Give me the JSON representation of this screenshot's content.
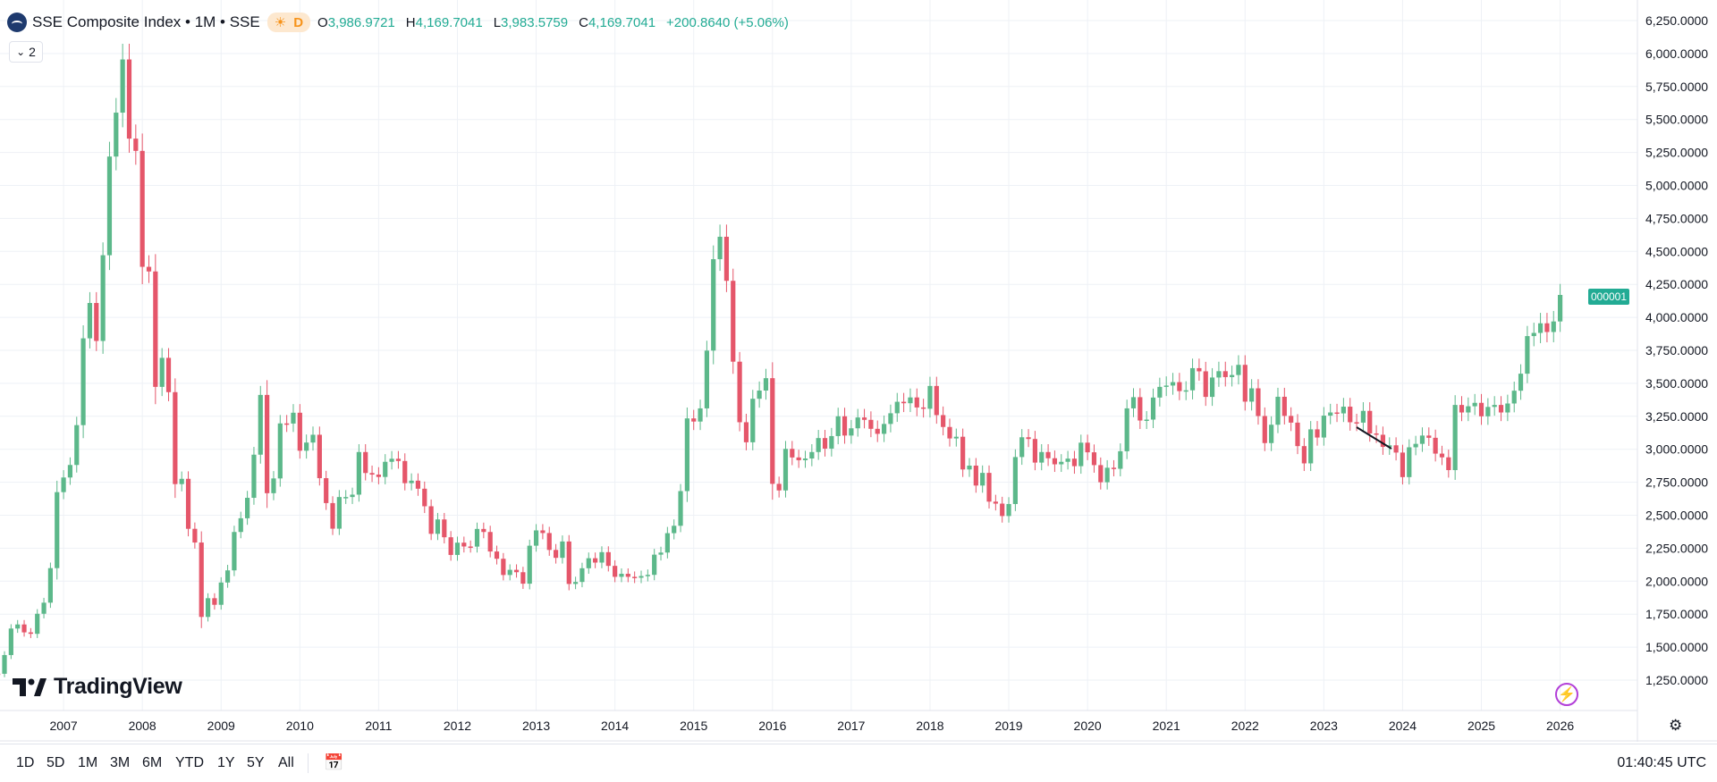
{
  "header": {
    "title": "SSE Composite Index • 1M • SSE",
    "delay_badge": "D",
    "ohlc": [
      {
        "key": "O",
        "value": "3,986.9721"
      },
      {
        "key": "H",
        "value": "4,169.7041"
      },
      {
        "key": "L",
        "value": "3,983.5759"
      },
      {
        "key": "C",
        "value": "4,169.7041"
      }
    ],
    "change": "+200.8640 (+5.06%)",
    "indicators_count": "2"
  },
  "brand": "TradingView",
  "price_label": "000001",
  "colors": {
    "up": "#22ab94",
    "up_fill": "#5cb88a",
    "down": "#e5566a",
    "grid": "#eef1f6"
  },
  "bottom_bar": {
    "ranges": [
      "1D",
      "5D",
      "1M",
      "3M",
      "6M",
      "YTD",
      "1Y",
      "5Y",
      "All"
    ],
    "time": "01:40:45 UTC"
  },
  "chart_data": {
    "type": "candlestick",
    "interval": "1M",
    "ylim": [
      1100,
      6350
    ],
    "y_ticks": [
      "6,250.0000",
      "6,000.0000",
      "5,750.0000",
      "5,500.0000",
      "5,250.0000",
      "5,000.0000",
      "4,750.0000",
      "4,500.0000",
      "4,250.0000",
      "4,000.0000",
      "3,750.0000",
      "3,500.0000",
      "3,250.0000",
      "3,000.0000",
      "2,750.0000",
      "2,500.0000",
      "2,250.0000",
      "2,000.0000",
      "1,750.0000",
      "1,500.0000",
      "1,250.0000"
    ],
    "x_ticks": [
      "2007",
      "2008",
      "2009",
      "2010",
      "2011",
      "2012",
      "2013",
      "2014",
      "2015",
      "2016",
      "2017",
      "2018",
      "2019",
      "2020",
      "2021",
      "2022",
      "2023",
      "2024",
      "2025",
      "2026"
    ],
    "x_start": "2006-01",
    "closes": [
      1259,
      1299,
      1298,
      1440,
      1641,
      1672,
      1612,
      1601,
      1753,
      1837,
      2099,
      2675,
      2786,
      2881,
      3183,
      3841,
      4109,
      3821,
      4471,
      5219,
      5552,
      5955,
      5355,
      5262,
      4383,
      4348,
      3473,
      3693,
      3433,
      2736,
      2776,
      2397,
      2293,
      1729,
      1871,
      1821,
      1990,
      2082,
      2373,
      2477,
      2632,
      2959,
      3412,
      2667,
      2779,
      3196,
      3195,
      3277,
      2989,
      3051,
      3110,
      2781,
      2592,
      2398,
      2638,
      2638,
      2656,
      2979,
      2820,
      2808,
      2790,
      2905,
      2928,
      2911,
      2743,
      2762,
      2701,
      2568,
      2359,
      2468,
      2333,
      2199,
      2292,
      2263,
      2262,
      2396,
      2373,
      2225,
      2170,
      2047,
      2086,
      2068,
      1981,
      2269,
      2385,
      2365,
      2237,
      2177,
      2301,
      1979,
      1994,
      2098,
      2174,
      2141,
      2220,
      2116,
      2033,
      2056,
      2033,
      2026,
      2039,
      2048,
      2201,
      2217,
      2364,
      2420,
      2683,
      3234,
      3210,
      3310,
      3748,
      4441,
      4611,
      4277,
      3664,
      3205,
      3053,
      3383,
      3445,
      3539,
      2738,
      2688,
      3003,
      2938,
      2917,
      2930,
      2979,
      3085,
      3005,
      3100,
      3250,
      3104,
      3159,
      3241,
      3223,
      3155,
      3117,
      3192,
      3273,
      3360,
      3349,
      3393,
      3317,
      3307,
      3480,
      3259,
      3169,
      3082,
      3095,
      2847,
      2876,
      2725,
      2821,
      2603,
      2588,
      2494,
      2585,
      2941,
      3091,
      3078,
      2899,
      2979,
      2932,
      2886,
      2905,
      2929,
      2872,
      3050,
      2977,
      2880,
      2750,
      2860,
      2852,
      2985,
      3310,
      3395,
      3218,
      3225,
      3392,
      3473,
      3483,
      3509,
      3441,
      3447,
      3615,
      3591,
      3397,
      3544,
      3592,
      3547,
      3563,
      3640,
      3361,
      3462,
      3252,
      3047,
      3186,
      3398,
      3253,
      3202,
      3024,
      2893,
      3151,
      3089,
      3255,
      3279,
      3272,
      3323,
      3205,
      3202,
      3291,
      3120,
      3110,
      3018,
      3030,
      2975,
      2789,
      3015,
      3041,
      3104,
      3087,
      2967,
      2939,
      2842,
      3336,
      3279,
      3326,
      3352,
      3250,
      3321,
      3336,
      3279,
      3347,
      3444,
      3573,
      3858,
      3882,
      3955,
      3889,
      3969,
      4170
    ]
  }
}
